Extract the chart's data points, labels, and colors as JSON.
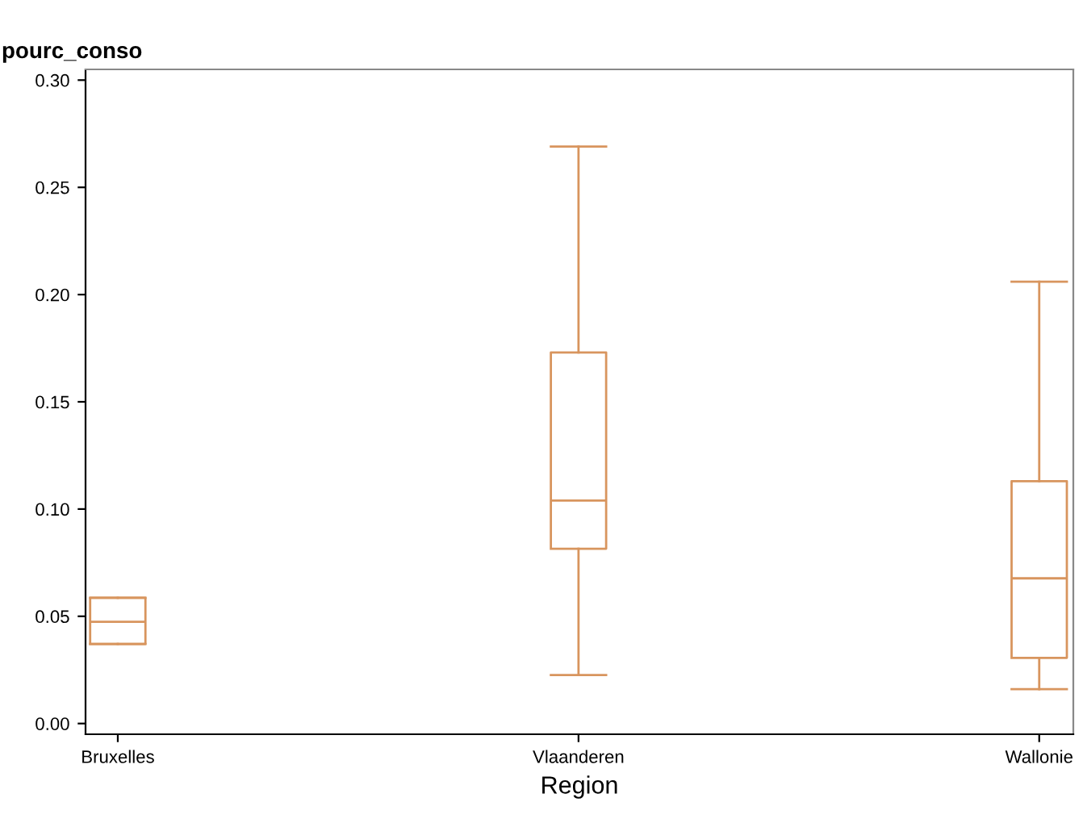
{
  "chart_data": {
    "type": "box",
    "ylabel": "pourc_conso",
    "xlabel": "Region",
    "categories": [
      "Bruxelles",
      "Vlaanderen",
      "Wallonie"
    ],
    "boxes": [
      {
        "low": 0.0371,
        "q1": 0.0371,
        "median": 0.0474,
        "q3": 0.0586,
        "high": 0.0586
      },
      {
        "low": 0.0226,
        "q1": 0.0815,
        "median": 0.104,
        "q3": 0.173,
        "high": 0.269
      },
      {
        "low": 0.016,
        "q1": 0.0306,
        "median": 0.0677,
        "q3": 0.113,
        "high": 0.206
      }
    ],
    "color": "#d8955e",
    "ylim": [
      -0.005,
      0.305
    ],
    "yticks": [
      {
        "value": 0,
        "label": "0.00"
      },
      {
        "value": 0.05,
        "label": "0.05"
      },
      {
        "value": 0.1,
        "label": "0.10"
      },
      {
        "value": 0.15,
        "label": "0.15"
      },
      {
        "value": 0.2,
        "label": "0.20"
      },
      {
        "value": 0.25,
        "label": "0.25"
      },
      {
        "value": 0.3,
        "label": "0.30"
      }
    ],
    "grid": false,
    "legend": false
  }
}
